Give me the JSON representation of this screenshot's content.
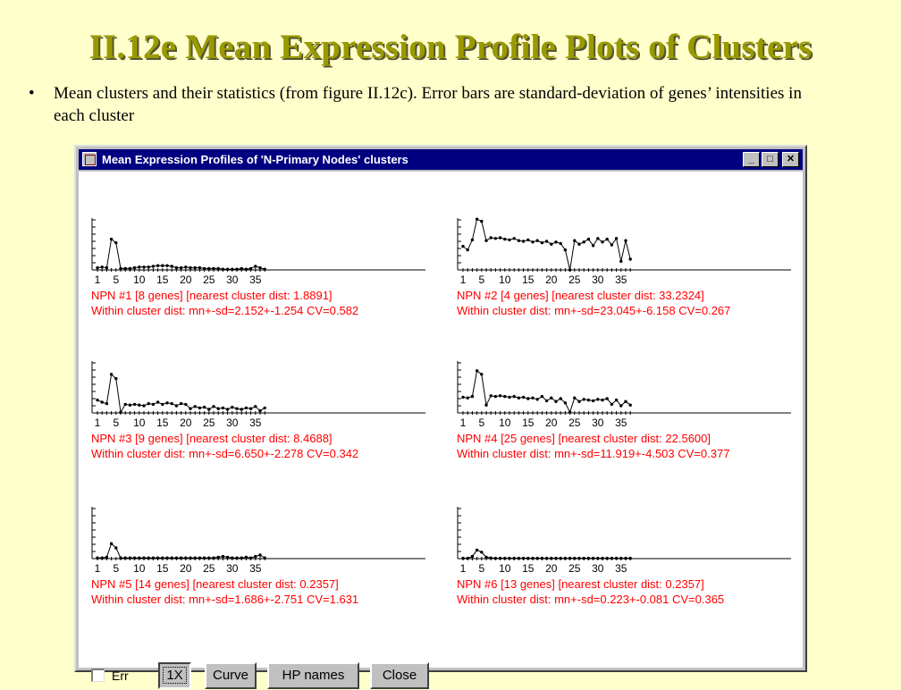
{
  "slide": {
    "title": "II.12e Mean Expression Profile Plots of Clusters",
    "bullet": "•",
    "bullet_text": "Mean clusters and their statistics (from figure II.12c).  Error bars are standard-deviation of genes’ intensities in each cluster"
  },
  "window": {
    "title": "Mean Expression Profiles of 'N-Primary Nodes' clusters",
    "minimize_glyph": "_",
    "maximize_glyph": "□",
    "close_glyph": "✕",
    "accent": "#000080"
  },
  "tick_labels": [
    "1",
    "5",
    "10",
    "15",
    "20",
    "25",
    "30",
    "35"
  ],
  "chart_data": [
    {
      "type": "line",
      "x": [
        1,
        2,
        3,
        4,
        5,
        6,
        7,
        8,
        9,
        10,
        11,
        12,
        13,
        14,
        15,
        16,
        17,
        18,
        19,
        20,
        21,
        22,
        23,
        24,
        25,
        26,
        27,
        28,
        29,
        30,
        31,
        32,
        33,
        34,
        35,
        36,
        37
      ],
      "values": [
        0.3,
        0.4,
        0.3,
        4.3,
        3.8,
        0.2,
        0.2,
        0.2,
        0.3,
        0.4,
        0.4,
        0.4,
        0.5,
        0.6,
        0.6,
        0.6,
        0.5,
        0.3,
        0.3,
        0.4,
        0.3,
        0.3,
        0.3,
        0.2,
        0.2,
        0.2,
        0.2,
        0.1,
        0.1,
        0.1,
        0.1,
        0.2,
        0.1,
        0.2,
        0.5,
        0.3,
        0.1
      ],
      "title_line1": "NPN #1 [8 genes] [nearest cluster dist: 1.8891]",
      "title_line2": "Within cluster dist: mn+-sd=2.152+-1.254 CV=0.582"
    },
    {
      "type": "line",
      "x": [
        1,
        2,
        3,
        4,
        5,
        6,
        7,
        8,
        9,
        10,
        11,
        12,
        13,
        14,
        15,
        16,
        17,
        18,
        19,
        20,
        21,
        22,
        23,
        24,
        25,
        26,
        27,
        28,
        29,
        30,
        31,
        32,
        33,
        34,
        35,
        36,
        37
      ],
      "values": [
        3.3,
        2.8,
        4.2,
        7.1,
        6.8,
        4.1,
        4.5,
        4.4,
        4.5,
        4.3,
        4.2,
        4.4,
        4.1,
        4.0,
        4.2,
        3.9,
        4.1,
        3.8,
        4.0,
        3.6,
        3.9,
        3.7,
        2.8,
        0.0,
        4.1,
        3.6,
        3.9,
        4.3,
        3.4,
        4.4,
        3.9,
        4.3,
        3.5,
        4.4,
        1.2,
        4.1,
        1.5
      ],
      "title_line1": "NPN #2 [4 genes] [nearest cluster dist: 33.2324]",
      "title_line2": "Within cluster dist: mn+-sd=23.045+-6.158 CV=0.267"
    },
    {
      "type": "line",
      "x": [
        1,
        2,
        3,
        4,
        5,
        6,
        7,
        8,
        9,
        10,
        11,
        12,
        13,
        14,
        15,
        16,
        17,
        18,
        19,
        20,
        21,
        22,
        23,
        24,
        25,
        26,
        27,
        28,
        29,
        30,
        31,
        32,
        33,
        34,
        35,
        36,
        37
      ],
      "values": [
        1.8,
        1.5,
        1.3,
        5.4,
        4.8,
        0.1,
        1.2,
        1.1,
        1.2,
        1.1,
        1.0,
        1.3,
        1.2,
        1.5,
        1.2,
        1.4,
        1.3,
        1.0,
        1.3,
        1.2,
        0.6,
        0.9,
        0.7,
        0.8,
        0.5,
        0.9,
        0.6,
        0.7,
        0.5,
        0.8,
        0.6,
        0.5,
        0.7,
        0.6,
        0.9,
        0.3,
        0.7
      ],
      "title_line1": "NPN #3 [9 genes] [nearest cluster dist: 8.4688]",
      "title_line2": "Within cluster dist: mn+-sd=6.650+-2.278 CV=0.342"
    },
    {
      "type": "line",
      "x": [
        1,
        2,
        3,
        4,
        5,
        6,
        7,
        8,
        9,
        10,
        11,
        12,
        13,
        14,
        15,
        16,
        17,
        18,
        19,
        20,
        21,
        22,
        23,
        24,
        25,
        26,
        27,
        28,
        29,
        30,
        31,
        32,
        33,
        34,
        35,
        36,
        37
      ],
      "values": [
        2.2,
        2.1,
        2.3,
        5.9,
        5.4,
        1.1,
        2.4,
        2.3,
        2.4,
        2.3,
        2.2,
        2.3,
        2.1,
        2.2,
        2.0,
        2.1,
        1.9,
        2.3,
        1.7,
        2.1,
        1.6,
        2.0,
        1.4,
        0.1,
        2.1,
        1.6,
        1.9,
        1.8,
        1.7,
        1.9,
        1.8,
        2.0,
        1.2,
        1.8,
        1.0,
        1.6,
        1.1
      ],
      "title_line1": "NPN #4 [25 genes] [nearest cluster dist: 22.5600]",
      "title_line2": "Within cluster dist: mn+-sd=11.919+-4.503 CV=0.377"
    },
    {
      "type": "line",
      "x": [
        1,
        2,
        3,
        4,
        5,
        6,
        7,
        8,
        9,
        10,
        11,
        12,
        13,
        14,
        15,
        16,
        17,
        18,
        19,
        20,
        21,
        22,
        23,
        24,
        25,
        26,
        27,
        28,
        29,
        30,
        31,
        32,
        33,
        34,
        35,
        36,
        37
      ],
      "values": [
        0.1,
        0.1,
        0.2,
        2.1,
        1.5,
        0.1,
        0.1,
        0.1,
        0.1,
        0.1,
        0.1,
        0.1,
        0.1,
        0.1,
        0.1,
        0.1,
        0.1,
        0.1,
        0.1,
        0.1,
        0.1,
        0.1,
        0.1,
        0.1,
        0.1,
        0.1,
        0.2,
        0.3,
        0.2,
        0.1,
        0.1,
        0.1,
        0.2,
        0.1,
        0.3,
        0.5,
        0.1
      ],
      "title_line1": "NPN #5 [14 genes] [nearest cluster dist: 0.2357]",
      "title_line2": "Within cluster dist: mn+-sd=1.686+-2.751 CV=1.631"
    },
    {
      "type": "line",
      "x": [
        1,
        2,
        3,
        4,
        5,
        6,
        7,
        8,
        9,
        10,
        11,
        12,
        13,
        14,
        15,
        16,
        17,
        18,
        19,
        20,
        21,
        22,
        23,
        24,
        25,
        26,
        27,
        28,
        29,
        30,
        31,
        32,
        33,
        34,
        35,
        36,
        37
      ],
      "values": [
        0.05,
        0.05,
        0.3,
        1.2,
        0.9,
        0.2,
        0.1,
        0.05,
        0.05,
        0.05,
        0.05,
        0.05,
        0.05,
        0.05,
        0.05,
        0.05,
        0.05,
        0.05,
        0.05,
        0.05,
        0.05,
        0.05,
        0.05,
        0.05,
        0.05,
        0.05,
        0.05,
        0.05,
        0.05,
        0.05,
        0.05,
        0.05,
        0.05,
        0.05,
        0.05,
        0.05,
        0.05
      ],
      "title_line1": "NPN #6 [13 genes] [nearest cluster dist: 0.2357]",
      "title_line2": "Within cluster dist: mn+-sd=0.223+-0.081 CV=0.365"
    }
  ],
  "controls": {
    "err_label": "Err",
    "btn_1x": "1X",
    "btn_curve": "Curve",
    "btn_hp_names": "HP names",
    "btn_close": "Close"
  }
}
